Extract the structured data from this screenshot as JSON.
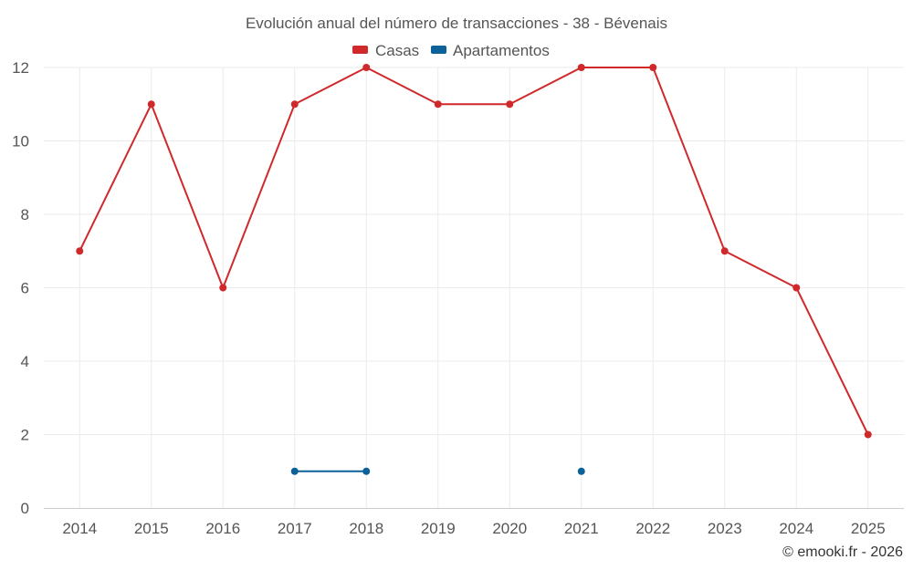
{
  "chart_data": {
    "type": "line",
    "title": "Evolución anual del número de transacciones - 38 - Bévenais",
    "categories": [
      "2014",
      "2015",
      "2016",
      "2017",
      "2018",
      "2019",
      "2020",
      "2021",
      "2022",
      "2023",
      "2024",
      "2025"
    ],
    "series": [
      {
        "name": "Casas",
        "color": "#d0292b",
        "values": [
          7,
          11,
          6,
          11,
          12,
          11,
          11,
          12,
          12,
          7,
          6,
          2
        ]
      },
      {
        "name": "Apartamentos",
        "color": "#0d6199",
        "values": [
          null,
          null,
          null,
          1,
          1,
          null,
          null,
          1,
          null,
          null,
          null,
          null
        ]
      }
    ],
    "ylim": [
      0,
      12
    ],
    "yticks": [
      "0",
      "2",
      "4",
      "6",
      "8",
      "10",
      "12"
    ],
    "grid": true,
    "legend": "top-center"
  },
  "credit": "© emooki.fr - 2026"
}
